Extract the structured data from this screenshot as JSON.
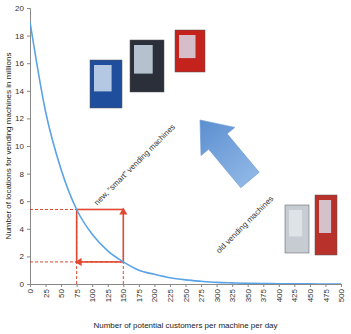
{
  "chart_data": {
    "type": "line",
    "x_label": "Number of potential customers per machine per day",
    "y_label": "Number of locations for vending machines in millions",
    "x": [
      0,
      25,
      50,
      75,
      100,
      125,
      150,
      175,
      200,
      225,
      250,
      275,
      300,
      325,
      350,
      375,
      400,
      425,
      450,
      475,
      500
    ],
    "values": [
      19.0,
      12.5,
      8.3,
      5.4,
      3.6,
      2.4,
      1.6,
      1.0,
      0.7,
      0.45,
      0.3,
      0.2,
      0.12,
      0.08,
      0.05,
      0.03,
      0.02,
      0.01,
      0.01,
      0.0,
      0.0
    ],
    "color": "#5aa3e6",
    "xlim": [
      0,
      500
    ],
    "ylim": [
      0,
      20
    ],
    "xticks": [
      0,
      25,
      50,
      75,
      100,
      125,
      150,
      175,
      200,
      225,
      250,
      275,
      300,
      325,
      350,
      375,
      400,
      425,
      450,
      475,
      500
    ],
    "yticks": [
      0,
      2,
      4,
      6,
      8,
      10,
      12,
      14,
      16,
      18,
      20
    ],
    "grid": false,
    "annotations": [
      "new, “smart” vending machines",
      "old vending machines"
    ],
    "highlights": {
      "color": "#e0482f",
      "x": [
        75,
        150
      ],
      "y": [
        5.4,
        1.6
      ]
    }
  }
}
